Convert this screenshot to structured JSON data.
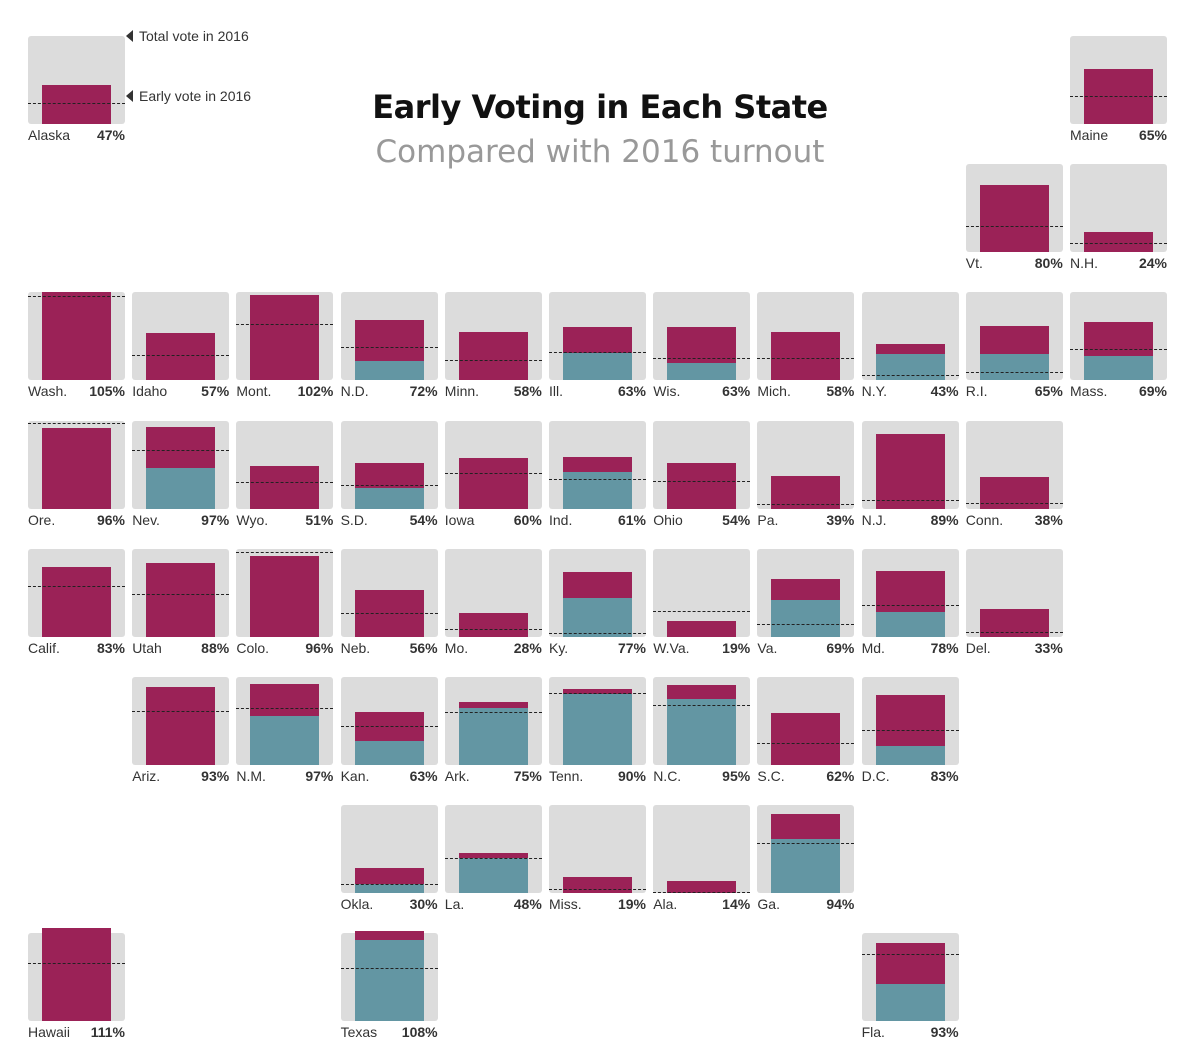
{
  "title": "Early Voting in Each State",
  "subtitle": "Compared with 2016 turnout",
  "legend": {
    "total_label": "Total vote in 2016",
    "early_label": "Early vote in 2016"
  },
  "colors": {
    "tile_background": "#dcdcdc",
    "in_person_bar": "#9b2257",
    "mail_bar": "#6396a3",
    "dashed_line": "#222222",
    "text": "#333333"
  },
  "chart_data": {
    "type": "bar",
    "layout": "tile-grid map of U.S. states",
    "value_unit": "share of 2016 total vote (%)",
    "states": [
      {
        "name": "Alaska",
        "pct_label": "47%",
        "col": 0,
        "row": 0,
        "total": 47,
        "blue": 0,
        "early2016": 25
      },
      {
        "name": "Maine",
        "pct_label": "65%",
        "col": 10,
        "row": 0,
        "total": 65,
        "blue": 0,
        "early2016": 33
      },
      {
        "name": "Vt.",
        "pct_label": "80%",
        "col": 9,
        "row": 1,
        "total": 80,
        "blue": 0,
        "early2016": 31
      },
      {
        "name": "N.H.",
        "pct_label": "24%",
        "col": 10,
        "row": 1,
        "total": 24,
        "blue": 0,
        "early2016": 11
      },
      {
        "name": "Wash.",
        "pct_label": "105%",
        "col": 0,
        "row": 2,
        "total": 105,
        "blue": 0,
        "early2016": 101
      },
      {
        "name": "Idaho",
        "pct_label": "57%",
        "col": 1,
        "row": 2,
        "total": 57,
        "blue": 0,
        "early2016": 30
      },
      {
        "name": "Mont.",
        "pct_label": "102%",
        "col": 2,
        "row": 2,
        "total": 102,
        "blue": 0,
        "early2016": 67
      },
      {
        "name": "N.D.",
        "pct_label": "72%",
        "col": 3,
        "row": 2,
        "total": 72,
        "blue": 23,
        "early2016": 40
      },
      {
        "name": "Minn.",
        "pct_label": "58%",
        "col": 4,
        "row": 2,
        "total": 58,
        "blue": 0,
        "early2016": 24
      },
      {
        "name": "Ill.",
        "pct_label": "63%",
        "col": 5,
        "row": 2,
        "total": 63,
        "blue": 33,
        "early2016": 34
      },
      {
        "name": "Wis.",
        "pct_label": "63%",
        "col": 6,
        "row": 2,
        "total": 63,
        "blue": 21,
        "early2016": 27
      },
      {
        "name": "Mich.",
        "pct_label": "58%",
        "col": 7,
        "row": 2,
        "total": 58,
        "blue": 0,
        "early2016": 27
      },
      {
        "name": "N.Y.",
        "pct_label": "43%",
        "col": 8,
        "row": 2,
        "total": 43,
        "blue": 32,
        "early2016": 6
      },
      {
        "name": "R.I.",
        "pct_label": "65%",
        "col": 9,
        "row": 2,
        "total": 65,
        "blue": 31,
        "early2016": 10
      },
      {
        "name": "Mass.",
        "pct_label": "69%",
        "col": 10,
        "row": 2,
        "total": 69,
        "blue": 29,
        "early2016": 37
      },
      {
        "name": "Ore.",
        "pct_label": "96%",
        "col": 0,
        "row": 3,
        "total": 96,
        "blue": 0,
        "early2016": 102
      },
      {
        "name": "Nev.",
        "pct_label": "97%",
        "col": 1,
        "row": 3,
        "total": 97,
        "blue": 48,
        "early2016": 70
      },
      {
        "name": "Wyo.",
        "pct_label": "51%",
        "col": 2,
        "row": 3,
        "total": 51,
        "blue": 0,
        "early2016": 32
      },
      {
        "name": "S.D.",
        "pct_label": "54%",
        "col": 3,
        "row": 3,
        "total": 54,
        "blue": 24,
        "early2016": 28
      },
      {
        "name": "Iowa",
        "pct_label": "60%",
        "col": 4,
        "row": 3,
        "total": 60,
        "blue": 0,
        "early2016": 42
      },
      {
        "name": "Ind.",
        "pct_label": "61%",
        "col": 5,
        "row": 3,
        "total": 61,
        "blue": 43,
        "early2016": 35
      },
      {
        "name": "Ohio",
        "pct_label": "54%",
        "col": 6,
        "row": 3,
        "total": 54,
        "blue": 0,
        "early2016": 33
      },
      {
        "name": "Pa.",
        "pct_label": "39%",
        "col": 7,
        "row": 3,
        "total": 39,
        "blue": 0,
        "early2016": 5
      },
      {
        "name": "N.J.",
        "pct_label": "89%",
        "col": 8,
        "row": 3,
        "total": 89,
        "blue": 0,
        "early2016": 10
      },
      {
        "name": "Conn.",
        "pct_label": "38%",
        "col": 9,
        "row": 3,
        "total": 38,
        "blue": 0,
        "early2016": 7
      },
      {
        "name": "Calif.",
        "pct_label": "83%",
        "col": 0,
        "row": 4,
        "total": 83,
        "blue": 0,
        "early2016": 60
      },
      {
        "name": "Utah",
        "pct_label": "88%",
        "col": 1,
        "row": 4,
        "total": 88,
        "blue": 0,
        "early2016": 51
      },
      {
        "name": "Colo.",
        "pct_label": "96%",
        "col": 2,
        "row": 4,
        "total": 96,
        "blue": 0,
        "early2016": 101
      },
      {
        "name": "Neb.",
        "pct_label": "56%",
        "col": 3,
        "row": 4,
        "total": 56,
        "blue": 0,
        "early2016": 28
      },
      {
        "name": "Mo.",
        "pct_label": "28%",
        "col": 4,
        "row": 4,
        "total": 28,
        "blue": 0,
        "early2016": 9
      },
      {
        "name": "Ky.",
        "pct_label": "77%",
        "col": 5,
        "row": 4,
        "total": 77,
        "blue": 46,
        "early2016": 5
      },
      {
        "name": "W.Va.",
        "pct_label": "19%",
        "col": 6,
        "row": 4,
        "total": 19,
        "blue": 0,
        "early2016": 31
      },
      {
        "name": "Va.",
        "pct_label": "69%",
        "col": 7,
        "row": 4,
        "total": 69,
        "blue": 44,
        "early2016": 15
      },
      {
        "name": "Md.",
        "pct_label": "78%",
        "col": 8,
        "row": 4,
        "total": 78,
        "blue": 30,
        "early2016": 38
      },
      {
        "name": "Del.",
        "pct_label": "33%",
        "col": 9,
        "row": 4,
        "total": 33,
        "blue": 0,
        "early2016": 6
      },
      {
        "name": "Ariz.",
        "pct_label": "93%",
        "col": 1,
        "row": 5,
        "total": 93,
        "blue": 0,
        "early2016": 64
      },
      {
        "name": "N.M.",
        "pct_label": "97%",
        "col": 2,
        "row": 5,
        "total": 97,
        "blue": 58,
        "early2016": 68
      },
      {
        "name": "Kan.",
        "pct_label": "63%",
        "col": 3,
        "row": 5,
        "total": 63,
        "blue": 29,
        "early2016": 47
      },
      {
        "name": "Ark.",
        "pct_label": "75%",
        "col": 4,
        "row": 5,
        "total": 75,
        "blue": 68,
        "early2016": 63
      },
      {
        "name": "Tenn.",
        "pct_label": "90%",
        "col": 5,
        "row": 5,
        "total": 90,
        "blue": 84,
        "early2016": 86
      },
      {
        "name": "N.C.",
        "pct_label": "95%",
        "col": 6,
        "row": 5,
        "total": 95,
        "blue": 78,
        "early2016": 71
      },
      {
        "name": "S.C.",
        "pct_label": "62%",
        "col": 7,
        "row": 5,
        "total": 62,
        "blue": 0,
        "early2016": 26
      },
      {
        "name": "D.C.",
        "pct_label": "83%",
        "col": 8,
        "row": 5,
        "total": 83,
        "blue": 23,
        "early2016": 42
      },
      {
        "name": "Okla.",
        "pct_label": "30%",
        "col": 3,
        "row": 6,
        "total": 30,
        "blue": 11,
        "early2016": 11
      },
      {
        "name": "La.",
        "pct_label": "48%",
        "col": 4,
        "row": 6,
        "total": 48,
        "blue": 42,
        "early2016": 42
      },
      {
        "name": "Miss.",
        "pct_label": "19%",
        "col": 5,
        "row": 6,
        "total": 19,
        "blue": 0,
        "early2016": 5
      },
      {
        "name": "Ala.",
        "pct_label": "14%",
        "col": 6,
        "row": 6,
        "total": 14,
        "blue": 0,
        "early2016": 2
      },
      {
        "name": "Ga.",
        "pct_label": "94%",
        "col": 7,
        "row": 6,
        "total": 94,
        "blue": 64,
        "early2016": 60
      },
      {
        "name": "Hawaii",
        "pct_label": "111%",
        "col": 0,
        "row": 7,
        "total": 111,
        "blue": 0,
        "early2016": 70
      },
      {
        "name": "Texas",
        "pct_label": "108%",
        "col": 3,
        "row": 7,
        "total": 108,
        "blue": 97,
        "early2016": 64
      },
      {
        "name": "Fla.",
        "pct_label": "93%",
        "col": 8,
        "row": 7,
        "total": 93,
        "blue": 45,
        "early2016": 80
      }
    ]
  }
}
